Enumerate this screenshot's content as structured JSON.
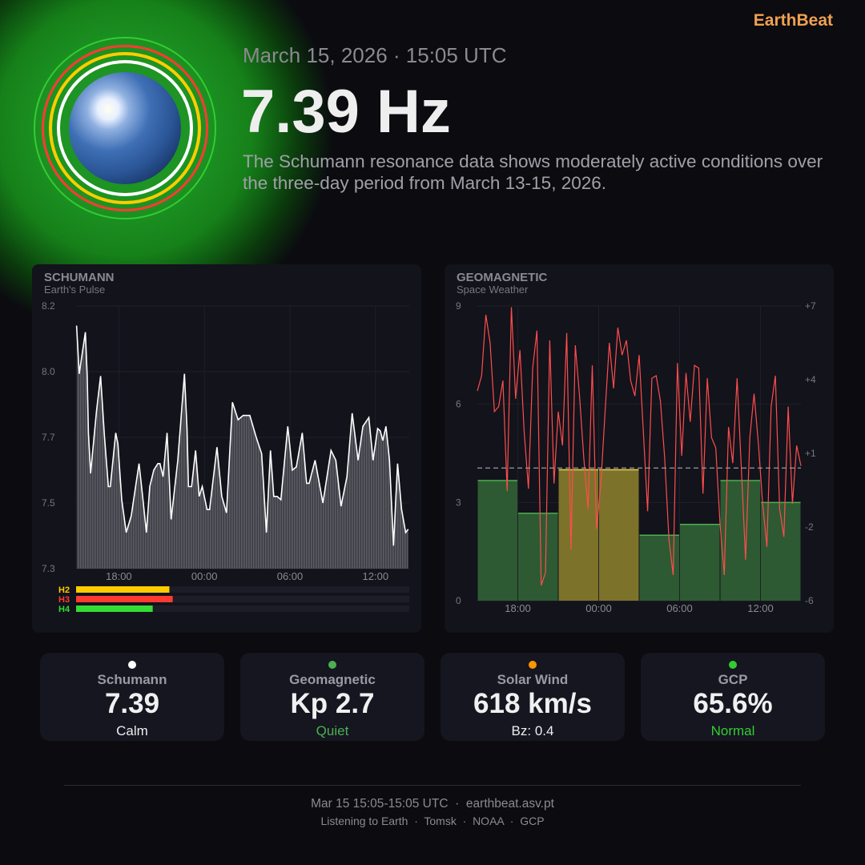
{
  "header": {
    "brand": "EarthBeat",
    "datetime": "March 15, 2026 · 15:05 UTC",
    "frequency": "7.39 Hz",
    "description": "The Schumann resonance data shows moderately active conditions over the three-day period from March 13-15, 2026."
  },
  "colors": {
    "accent": "#f0a050",
    "glow": "#1f9a25",
    "ring_green": "#33cc33",
    "ring_red": "#ff3b30",
    "ring_yellow": "#ffcc00",
    "ring_white": "#ffffff",
    "kp_quiet": "#2d5a32",
    "kp_active": "#7d722a",
    "bz_line": "#ff4d4d"
  },
  "schumann_panel": {
    "title": "SCHUMANN",
    "subtitle": "Earth's Pulse"
  },
  "geomagnetic_panel": {
    "title": "GEOMAGNETIC",
    "subtitle": "Space Weather"
  },
  "chart_data": [
    {
      "type": "area",
      "y_ticks": [
        "7.3",
        "7.5",
        "7.7",
        "8.0",
        "8.2"
      ],
      "y_tick_values": [
        7.3,
        7.5,
        7.7,
        8.0,
        8.2
      ],
      "x_ticks": [
        "18:00",
        "00:00",
        "06:00",
        "12:00"
      ],
      "x_range": [
        "15:00",
        "14:24"
      ],
      "grid": true,
      "points": [
        [
          "15:02",
          8.14
        ],
        [
          "15:13",
          7.99
        ],
        [
          "15:39",
          8.12
        ],
        [
          "15:47",
          7.98
        ],
        [
          "15:52",
          7.72
        ],
        [
          "16:01",
          7.59
        ],
        [
          "16:26",
          7.82
        ],
        [
          "16:43",
          7.98
        ],
        [
          "16:59",
          7.71
        ],
        [
          "17:16",
          7.55
        ],
        [
          "17:24",
          7.55
        ],
        [
          "17:47",
          7.72
        ],
        [
          "17:56",
          7.68
        ],
        [
          "18:12",
          7.51
        ],
        [
          "18:31",
          7.41
        ],
        [
          "18:52",
          7.46
        ],
        [
          "19:25",
          7.62
        ],
        [
          "19:37",
          7.54
        ],
        [
          "19:56",
          7.41
        ],
        [
          "20:10",
          7.55
        ],
        [
          "20:27",
          7.6
        ],
        [
          "20:44",
          7.62
        ],
        [
          "20:53",
          7.62
        ],
        [
          "21:06",
          7.58
        ],
        [
          "21:23",
          7.72
        ],
        [
          "21:40",
          7.45
        ],
        [
          "22:08",
          7.63
        ],
        [
          "22:36",
          7.99
        ],
        [
          "22:47",
          7.74
        ],
        [
          "22:53",
          7.55
        ],
        [
          "23:06",
          7.55
        ],
        [
          "23:23",
          7.66
        ],
        [
          "23:38",
          7.52
        ],
        [
          "23:51",
          7.55
        ],
        [
          "00:11",
          7.48
        ],
        [
          "00:22",
          7.48
        ],
        [
          "00:53",
          7.67
        ],
        [
          "01:13",
          7.52
        ],
        [
          "01:33",
          7.47
        ],
        [
          "01:58",
          7.86
        ],
        [
          "02:22",
          7.78
        ],
        [
          "02:43",
          7.8
        ],
        [
          "03:11",
          7.8
        ],
        [
          "03:38",
          7.7
        ],
        [
          "04:01",
          7.65
        ],
        [
          "04:21",
          7.41
        ],
        [
          "04:38",
          7.66
        ],
        [
          "04:52",
          7.52
        ],
        [
          "05:06",
          7.52
        ],
        [
          "05:22",
          7.51
        ],
        [
          "05:51",
          7.75
        ],
        [
          "06:10",
          7.6
        ],
        [
          "06:27",
          7.61
        ],
        [
          "06:52",
          7.72
        ],
        [
          "07:10",
          7.56
        ],
        [
          "07:21",
          7.56
        ],
        [
          "07:46",
          7.63
        ],
        [
          "08:19",
          7.5
        ],
        [
          "08:53",
          7.66
        ],
        [
          "09:13",
          7.63
        ],
        [
          "09:35",
          7.49
        ],
        [
          "10:00",
          7.58
        ],
        [
          "10:22",
          7.81
        ],
        [
          "10:47",
          7.63
        ],
        [
          "11:07",
          7.75
        ],
        [
          "11:32",
          7.79
        ],
        [
          "11:50",
          7.63
        ],
        [
          "12:09",
          7.74
        ],
        [
          "12:20",
          7.73
        ],
        [
          "12:31",
          7.69
        ],
        [
          "12:44",
          7.75
        ],
        [
          "12:59",
          7.63
        ],
        [
          "13:16",
          7.37
        ],
        [
          "13:33",
          7.62
        ],
        [
          "13:50",
          7.48
        ],
        [
          "14:07",
          7.41
        ],
        [
          "14:18",
          7.42
        ]
      ],
      "harmonics": [
        {
          "name": "H2",
          "level": 0.28,
          "color": "#ffcc00"
        },
        {
          "name": "H3",
          "level": 0.29,
          "color": "#ff3b30"
        },
        {
          "name": "H4",
          "level": 0.23,
          "color": "#33dd33"
        }
      ]
    },
    {
      "type": "bar",
      "left_axis": {
        "ticks": [
          "0",
          "3",
          "6",
          "9"
        ],
        "range": [
          0,
          9
        ]
      },
      "right_axis": {
        "ticks": [
          "-6",
          "-2",
          "+1",
          "+4",
          "+7"
        ],
        "values": [
          -6,
          -2,
          1,
          4,
          7
        ]
      },
      "x_ticks": [
        "18:00",
        "00:00",
        "06:00",
        "12:00"
      ],
      "x_range": [
        "15:00",
        "15:00"
      ],
      "grid": true,
      "kp_bars": [
        {
          "start": "15:00",
          "value": 3.67,
          "level": "quiet"
        },
        {
          "start": "18:00",
          "value": 2.67,
          "level": "quiet"
        },
        {
          "start": "21:00",
          "value": 4.0,
          "level": "active"
        },
        {
          "start": "00:00",
          "value": 4.0,
          "level": "active"
        },
        {
          "start": "03:00",
          "value": 2.0,
          "level": "quiet"
        },
        {
          "start": "06:00",
          "value": 2.33,
          "level": "quiet"
        },
        {
          "start": "09:00",
          "value": 3.67,
          "level": "quiet"
        },
        {
          "start": "12:00",
          "value": 3.0,
          "level": "quiet"
        }
      ],
      "bz_series": [
        3.54,
        4.16,
        6.64,
        5.5,
        2.7,
        2.9,
        3.96,
        -0.54,
        6.95,
        3.22,
        5.2,
        1.85,
        -0.44,
        4.47,
        6.0,
        -5.17,
        -4.47,
        5.6,
        -0.23,
        2.7,
        1.32,
        5.9,
        -3.22,
        5.4,
        3.33,
        0.8,
        -1.26,
        4.58,
        -2.11,
        -0.23,
        2.7,
        5.5,
        3.64,
        6.12,
        5.0,
        5.6,
        3.96,
        3.33,
        5.0,
        1.85,
        -1.36,
        4.06,
        4.16,
        3.12,
        0.8,
        -2.67,
        -4.61,
        4.68,
        0.9,
        4.27,
        2.28,
        4.58,
        4.47,
        -0.64,
        4.06,
        1.64,
        1.22,
        -1.88,
        -4.61,
        2.07,
        0.6,
        4.06,
        0.39,
        -3.78,
        1.64,
        3.43,
        1.43,
        -1.05,
        -3.08,
        2.9,
        4.16,
        -1.26,
        -2.53,
        2.9,
        -1.05,
        1.32,
        0.49
      ],
      "bz_current": 0.4
    }
  ],
  "cards": [
    {
      "label": "Schumann",
      "value": "7.39",
      "status": "Calm",
      "dot": "#ffffff",
      "status_color": "#eeeeee"
    },
    {
      "label": "Geomagnetic",
      "value": "Kp 2.7",
      "status": "Quiet",
      "dot": "#4caf50",
      "status_color": "#4caf50"
    },
    {
      "label": "Solar Wind",
      "value": "618 km/s",
      "status": "Bz: 0.4",
      "dot": "#ff9500",
      "status_color": "#eeeeee"
    },
    {
      "label": "GCP",
      "value": "65.6%",
      "status": "Normal",
      "dot": "#33cc33",
      "status_color": "#33cc33"
    }
  ],
  "footer": {
    "line1": "Mar 15 15:05-15:05 UTC  ·  earthbeat.asv.pt",
    "line2": "Listening to Earth  ·  Tomsk  ·  NOAA  ·  GCP"
  }
}
